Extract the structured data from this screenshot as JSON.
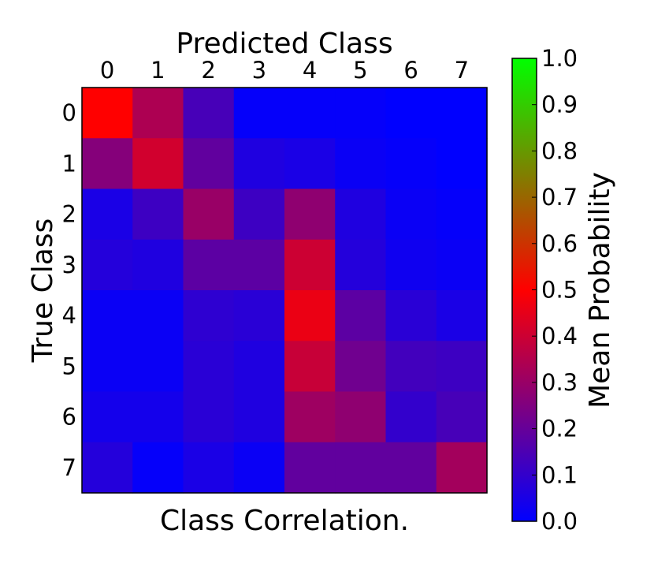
{
  "chart_data": {
    "type": "heatmap",
    "title": "Predicted Class",
    "xlabel": "Class Correlation.",
    "ylabel": "True Class",
    "x_categories": [
      "0",
      "1",
      "2",
      "3",
      "4",
      "5",
      "6",
      "7"
    ],
    "y_categories": [
      "0",
      "1",
      "2",
      "3",
      "4",
      "5",
      "6",
      "7"
    ],
    "values": [
      [
        0.5,
        0.34,
        0.14,
        0.01,
        0.01,
        0.01,
        0.0,
        0.0
      ],
      [
        0.26,
        0.41,
        0.19,
        0.06,
        0.05,
        0.02,
        0.01,
        0.0
      ],
      [
        0.05,
        0.12,
        0.3,
        0.12,
        0.28,
        0.06,
        0.02,
        0.01
      ],
      [
        0.07,
        0.06,
        0.18,
        0.18,
        0.4,
        0.07,
        0.03,
        0.02
      ],
      [
        0.02,
        0.02,
        0.09,
        0.08,
        0.46,
        0.18,
        0.08,
        0.05
      ],
      [
        0.02,
        0.02,
        0.08,
        0.06,
        0.39,
        0.22,
        0.13,
        0.12
      ],
      [
        0.04,
        0.04,
        0.08,
        0.06,
        0.31,
        0.28,
        0.1,
        0.14
      ],
      [
        0.07,
        0.01,
        0.05,
        0.02,
        0.19,
        0.19,
        0.19,
        0.32
      ]
    ],
    "colorbar": {
      "label": "Mean Probability",
      "range": [
        0.0,
        1.0
      ],
      "ticks": [
        "0.0",
        "0.1",
        "0.2",
        "0.3",
        "0.4",
        "0.5",
        "0.6",
        "0.7",
        "0.8",
        "0.9",
        "1.0"
      ],
      "colors": [
        "#0000ff",
        "#ff0000",
        "#00ff00"
      ]
    },
    "grid": false
  }
}
